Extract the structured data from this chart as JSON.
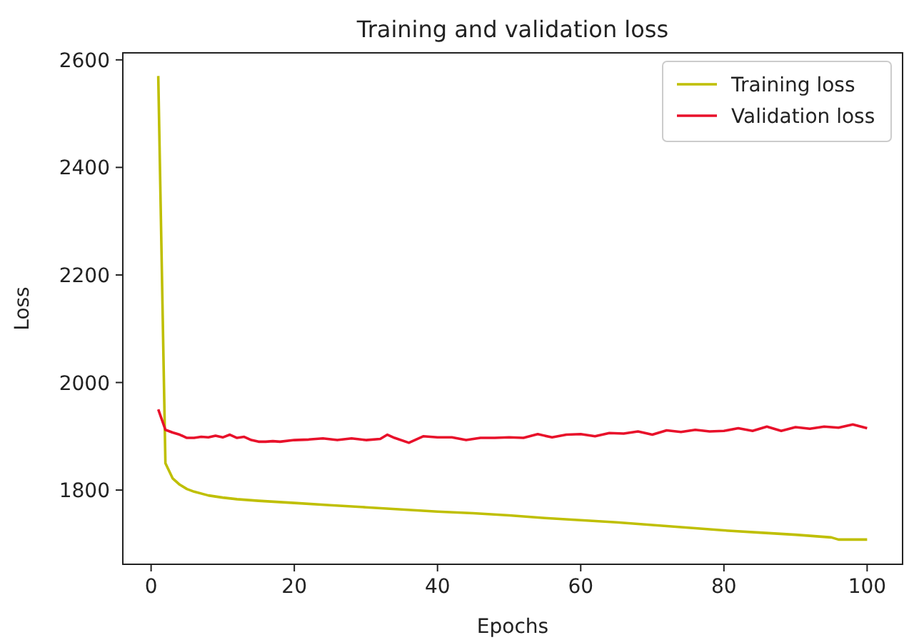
{
  "chart_data": {
    "type": "line",
    "title": "Training and validation loss",
    "xlabel": "Epochs",
    "ylabel": "Loss",
    "xlim": [
      -3.95,
      104.95
    ],
    "ylim": [
      1662,
      2613
    ],
    "xticks": [
      0,
      20,
      40,
      60,
      80,
      100
    ],
    "yticks": [
      1800,
      2000,
      2200,
      2400,
      2600
    ],
    "legend": "top right",
    "grid": false,
    "series": [
      {
        "name": "Training loss",
        "color": "#bfbf00",
        "x": [
          1,
          2,
          3,
          4,
          5,
          6,
          8,
          10,
          12,
          15,
          20,
          25,
          30,
          35,
          40,
          45,
          50,
          55,
          60,
          65,
          70,
          75,
          80,
          85,
          90,
          95,
          96,
          100
        ],
        "values": [
          2570,
          1850,
          1822,
          1810,
          1802,
          1797,
          1790,
          1786,
          1783,
          1780,
          1776,
          1772,
          1768,
          1764,
          1760,
          1757,
          1753,
          1748,
          1744,
          1740,
          1735,
          1730,
          1725,
          1721,
          1717,
          1712,
          1708,
          1708
        ]
      },
      {
        "name": "Validation loss",
        "color": "#e8102a",
        "x": [
          1,
          2,
          3,
          4,
          5,
          6,
          7,
          8,
          9,
          10,
          11,
          12,
          13,
          14,
          15,
          16,
          17,
          18,
          20,
          22,
          24,
          26,
          28,
          30,
          32,
          33,
          34,
          36,
          37,
          38,
          40,
          42,
          44,
          46,
          48,
          50,
          52,
          54,
          56,
          58,
          60,
          62,
          64,
          66,
          68,
          70,
          72,
          74,
          76,
          78,
          80,
          82,
          84,
          86,
          88,
          90,
          92,
          94,
          96,
          98,
          100
        ],
        "values": [
          1950,
          1912,
          1907,
          1903,
          1897,
          1897,
          1899,
          1898,
          1901,
          1898,
          1903,
          1897,
          1899,
          1893,
          1890,
          1890,
          1891,
          1890,
          1893,
          1894,
          1896,
          1893,
          1896,
          1893,
          1895,
          1903,
          1897,
          1888,
          1894,
          1900,
          1898,
          1898,
          1893,
          1897,
          1897,
          1898,
          1897,
          1904,
          1898,
          1903,
          1904,
          1900,
          1906,
          1905,
          1909,
          1903,
          1911,
          1908,
          1912,
          1909,
          1910,
          1915,
          1910,
          1918,
          1910,
          1917,
          1914,
          1918,
          1916,
          1922,
          1915
        ]
      }
    ]
  }
}
